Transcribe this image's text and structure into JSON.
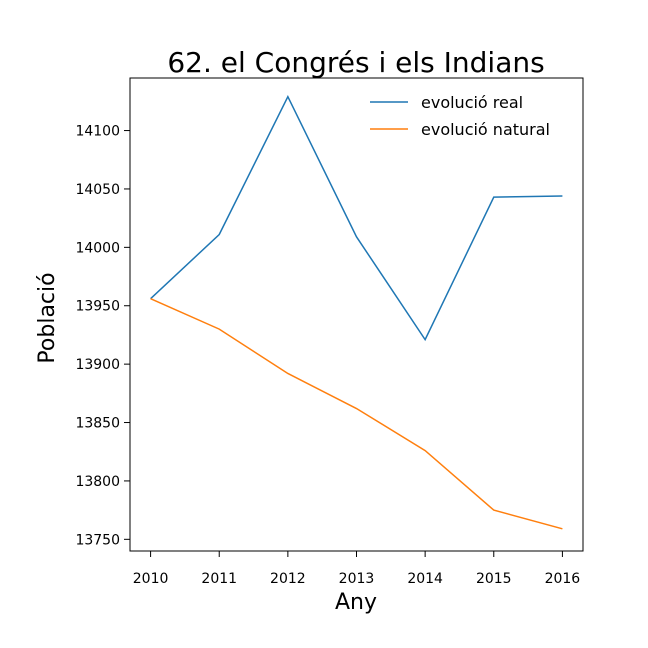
{
  "chart_data": {
    "type": "line",
    "title": "62. el Congrés i els Indians",
    "xlabel": "Any",
    "ylabel": "Població",
    "x": [
      2010,
      2011,
      2012,
      2013,
      2014,
      2015,
      2016
    ],
    "x_tick_labels": [
      "2010",
      "2011",
      "2012",
      "2013",
      "2014",
      "2015",
      "2016"
    ],
    "y_ticks": [
      13750,
      13800,
      13850,
      13900,
      13950,
      14000,
      14050,
      14100
    ],
    "y_tick_labels": [
      "13750",
      "13800",
      "13850",
      "13900",
      "13950",
      "14000",
      "14050",
      "14100"
    ],
    "xlim": [
      2009.7,
      2016.3
    ],
    "ylim": [
      13740,
      14145
    ],
    "grid": false,
    "legend_position": "top-right",
    "series": [
      {
        "name": "evolució real",
        "color": "#1f77b4",
        "values": [
          13956,
          14011,
          14129,
          14009,
          13921,
          14043,
          14044
        ]
      },
      {
        "name": "evolució natural",
        "color": "#ff7f0e",
        "values": [
          13956,
          13930,
          13892,
          13862,
          13826,
          13775,
          13759
        ]
      }
    ]
  }
}
